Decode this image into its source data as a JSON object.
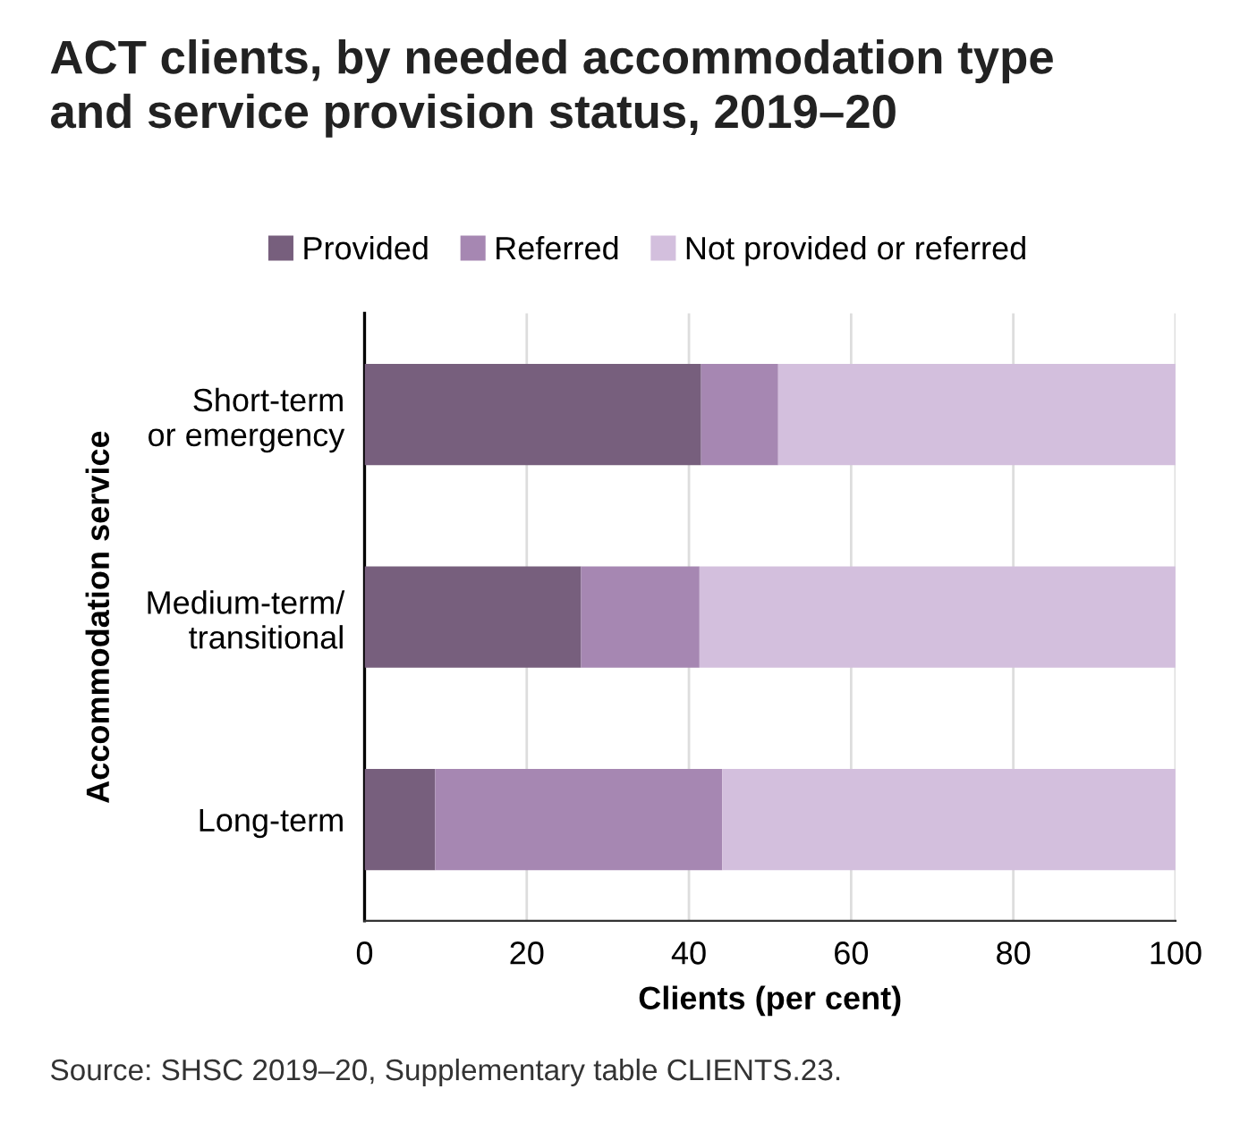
{
  "chart_data": {
    "type": "bar",
    "orientation": "horizontal",
    "stacked": true,
    "title": "ACT clients, by needed accommodation type\nand service provision status, 2019–20",
    "categories": [
      "Short-term\nor emergency",
      "Medium-term/\ntransitional",
      "Long-term"
    ],
    "series": [
      {
        "name": "Provided",
        "color": "#775f7d",
        "values": [
          41.5,
          26.7,
          8.7
        ]
      },
      {
        "name": "Referred",
        "color": "#a687b2",
        "values": [
          9.5,
          14.6,
          35.4
        ]
      },
      {
        "name": "Not provided or referred",
        "color": "#d3bfdd",
        "values": [
          49.0,
          58.7,
          55.9
        ]
      }
    ],
    "xlabel": "Clients (per cent)",
    "ylabel": "Accommodation service",
    "xlim": [
      0,
      100
    ],
    "xticks": [
      0,
      20,
      40,
      60,
      80,
      100
    ],
    "grid": "x",
    "legend": "top",
    "annotations": [
      "Source: SHSC 2019–20, Supplementary table CLIENTS.23."
    ]
  }
}
